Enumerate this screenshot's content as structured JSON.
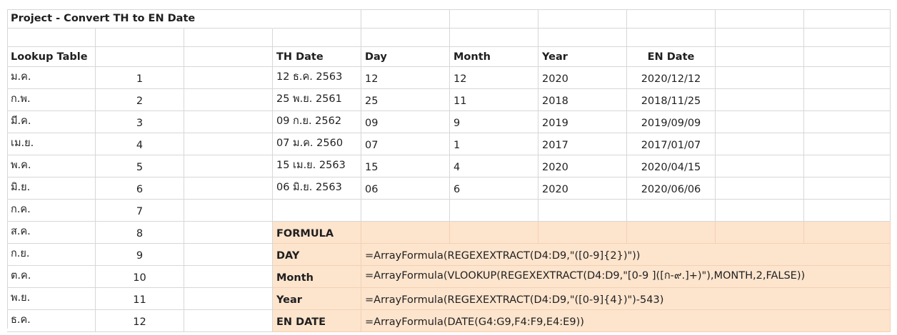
{
  "title": "Project - Convert TH to EN Date",
  "lookup_header": "Lookup Table",
  "lookup": [
    {
      "th": "ม.ค.",
      "num": "1"
    },
    {
      "th": "ก.พ.",
      "num": "2"
    },
    {
      "th": "มี.ค.",
      "num": "3"
    },
    {
      "th": "เม.ย.",
      "num": "4"
    },
    {
      "th": "พ.ค.",
      "num": "5"
    },
    {
      "th": "มิ.ย.",
      "num": "6"
    },
    {
      "th": "ก.ค.",
      "num": "7"
    },
    {
      "th": "ส.ค.",
      "num": "8"
    },
    {
      "th": "ก.ย.",
      "num": "9"
    },
    {
      "th": "ต.ค.",
      "num": "10"
    },
    {
      "th": "พ.ย.",
      "num": "11"
    },
    {
      "th": "ธ.ค.",
      "num": "12"
    }
  ],
  "headers": {
    "th_date": "TH Date",
    "day": "Day",
    "month": "Month",
    "year": "Year",
    "en_date": "EN Date"
  },
  "rows": [
    {
      "th_date": "12 ธ.ค. 2563",
      "day": "12",
      "month": "12",
      "year": "2020",
      "en_date": "2020/12/12"
    },
    {
      "th_date": "25 พ.ย. 2561",
      "day": "25",
      "month": "11",
      "year": "2018",
      "en_date": "2018/11/25"
    },
    {
      "th_date": "09 ก.ย. 2562",
      "day": "09",
      "month": "9",
      "year": "2019",
      "en_date": "2019/09/09"
    },
    {
      "th_date": "07 ม.ค. 2560",
      "day": "07",
      "month": "1",
      "year": "2017",
      "en_date": "2017/01/07"
    },
    {
      "th_date": "15 เม.ย. 2563",
      "day": "15",
      "month": "4",
      "year": "2020",
      "en_date": "2020/04/15"
    },
    {
      "th_date": "06 มิ.ย. 2563",
      "day": "06",
      "month": "6",
      "year": "2020",
      "en_date": "2020/06/06"
    }
  ],
  "formula_section": {
    "header": "FORMULA",
    "items": [
      {
        "label": "DAY",
        "formula": "=ArrayFormula(REGEXEXTRACT(D4:D9,\"([0-9]{2})\"))"
      },
      {
        "label": "Month",
        "formula": "=ArrayFormula(VLOOKUP(REGEXEXTRACT(D4:D9,\"[0-9 ]([ก-๙.]+)\"),MONTH,2,FALSE))"
      },
      {
        "label": "Year",
        "formula": "=ArrayFormula(REGEXEXTRACT(D4:D9,\"([0-9]{4})\")-543)"
      },
      {
        "label": "EN DATE",
        "formula": "=ArrayFormula(DATE(G4:G9,F4:F9,E4:E9))"
      }
    ]
  },
  "colors": {
    "formula_bg": "#fde4cd",
    "grid": "#d7d7d7",
    "text": "#1f1f1f"
  }
}
